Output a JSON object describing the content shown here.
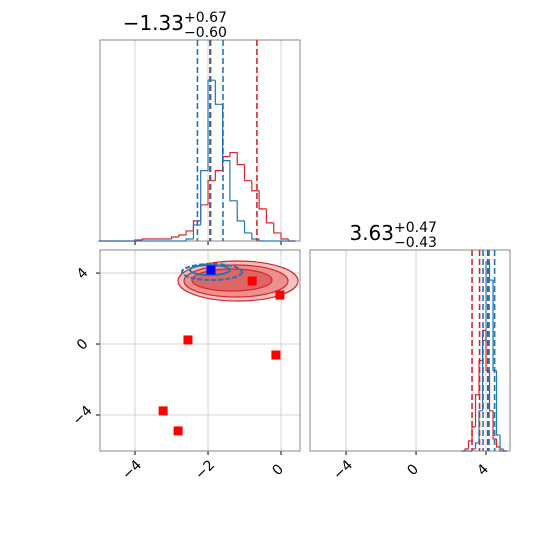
{
  "chart_data": [
    {
      "type": "histogram",
      "title": "−1.33",
      "title_sup": "+0.67",
      "title_sub": "−0.60",
      "bins": [
        -5.0,
        -4.8,
        -4.6,
        -4.4,
        -4.2,
        -4.0,
        -3.8,
        -3.6,
        -3.4,
        -3.2,
        -3.0,
        -2.8,
        -2.6,
        -2.4,
        -2.2,
        -2.0,
        -1.8,
        -1.6,
        -1.4,
        -1.2,
        -1.0,
        -0.8,
        -0.6,
        -0.4,
        -0.2,
        0.0,
        0.2,
        0.4
      ],
      "series": [
        {
          "color": "#d62728",
          "values": [
            0,
            0,
            0,
            0,
            0,
            0.5,
            1,
            1,
            1,
            1,
            2,
            3,
            5,
            10,
            18,
            30,
            35,
            42,
            44,
            38,
            30,
            25,
            16,
            9,
            4,
            1,
            0
          ]
        },
        {
          "color": "#1f77b4",
          "values": [
            0,
            0,
            0,
            0,
            0,
            0,
            0,
            0,
            0,
            0,
            0,
            0,
            1,
            8,
            35,
            80,
            68,
            40,
            20,
            10,
            4,
            1,
            0,
            0,
            0,
            0,
            0
          ]
        }
      ],
      "quantile_lines": [
        {
          "color": "#d62728",
          "values": [
            -1.93,
            -0.66
          ]
        },
        {
          "color": "#1f77b4",
          "values": [
            -2.29,
            -1.95,
            -1.59
          ]
        }
      ],
      "xlim": [
        -4.96,
        0.52
      ],
      "ylim": [
        0,
        100
      ],
      "xticks": [
        {
          "value": -4,
          "label": "−4"
        },
        {
          "value": -2,
          "label": "−2"
        },
        0
      ],
      "xtick_labels": false,
      "grid": true
    },
    {
      "type": "scatter",
      "series": [
        {
          "color": "#ff0000",
          "x": [
            -0.79,
            -0.03,
            -2.55,
            -0.14,
            -3.23,
            -2.82
          ],
          "y": [
            3.55,
            2.76,
            0.23,
            -0.62,
            -3.77,
            -4.9
          ]
        },
        {
          "color": "#0000ff",
          "x": [
            -1.92
          ],
          "y": [
            4.17
          ]
        }
      ],
      "xlim": [
        -4.96,
        0.52
      ],
      "ylim": [
        -6.03,
        5.3
      ],
      "xticks": [
        {
          "value": -4,
          "label": "−4"
        },
        {
          "value": -2,
          "label": "−2"
        },
        0
      ],
      "yticks": [
        {
          "value": -4,
          "label": "−4"
        },
        0,
        4
      ],
      "xtick_labels": true,
      "grid": true
    },
    {
      "type": "histogram",
      "title": "3.63",
      "title_sup": "+0.47",
      "title_sub": "−0.43",
      "bins": [
        2.6,
        2.8,
        3.0,
        3.2,
        3.4,
        3.6,
        3.8,
        4.0,
        4.2,
        4.4,
        4.6,
        4.8,
        5.0,
        5.2
      ],
      "series": [
        {
          "color": "#d62728",
          "values": [
            0,
            1,
            5,
            12,
            28,
            45,
            60,
            40,
            20,
            6,
            2,
            0,
            0
          ]
        },
        {
          "color": "#1f77b4",
          "values": [
            0,
            0,
            0,
            1,
            4,
            20,
            55,
            94,
            85,
            40,
            8,
            1,
            0
          ]
        }
      ],
      "quantile_lines": [
        {
          "color": "#d62728",
          "values": [
            3.2,
            3.63,
            4.1
          ]
        },
        {
          "color": "#1f77b4",
          "values": [
            3.83,
            4.17,
            4.49
          ]
        }
      ],
      "xlim": [
        -6.06,
        5.37
      ],
      "ylim": [
        0,
        100
      ],
      "xticks": [
        {
          "value": -4,
          "label": "−4"
        },
        0,
        4
      ],
      "xtick_labels": true,
      "grid": true
    }
  ]
}
